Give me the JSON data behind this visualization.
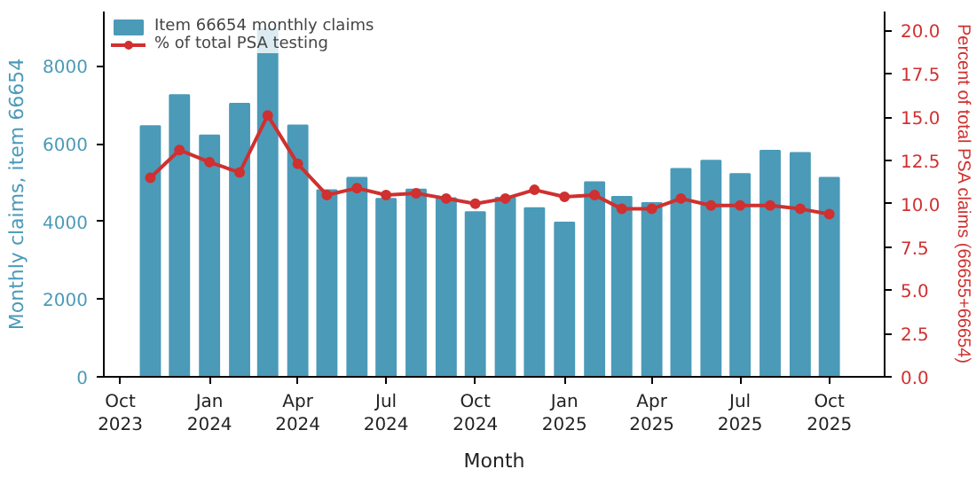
{
  "chart_data": {
    "type": "bar",
    "xlabel": "Month",
    "ylabel": "Monthly claims, item 66654",
    "y2label": "Percent of total PSA claims (66655+66654)",
    "x": [
      "2023-11",
      "2023-12",
      "2024-01",
      "2024-02",
      "2024-03",
      "2024-04",
      "2024-05",
      "2024-06",
      "2024-07",
      "2024-08",
      "2024-09",
      "2024-10",
      "2024-11",
      "2024-12",
      "2025-01",
      "2025-02",
      "2025-03",
      "2025-04",
      "2025-05",
      "2025-06",
      "2025-07",
      "2025-08",
      "2025-09",
      "2025-10"
    ],
    "series": [
      {
        "name": "Item 66654 monthly claims",
        "color": "#4b9ab8",
        "values": [
          6450,
          7250,
          6210,
          7030,
          8950,
          6470,
          4800,
          5120,
          4580,
          4820,
          4600,
          4240,
          4610,
          4340,
          3970,
          5010,
          4630,
          4470,
          5350,
          5560,
          5220,
          5820,
          5760,
          5120
        ]
      },
      {
        "name": "% of total PSA testing",
        "type": "line",
        "axis": "y2",
        "color": "#d03030",
        "marker": "circle",
        "values": [
          11.5,
          13.1,
          12.4,
          11.8,
          15.1,
          12.3,
          10.5,
          10.9,
          10.5,
          10.6,
          10.3,
          10.0,
          10.3,
          10.8,
          10.4,
          10.5,
          9.7,
          9.7,
          10.3,
          9.9,
          9.9,
          9.9,
          9.7,
          9.4
        ]
      }
    ],
    "xlim": [
      "2023-09-14",
      "2025-11-27"
    ],
    "xticks": [
      {
        "value": "2023-10",
        "label": "Oct\n2023"
      },
      {
        "value": "2024-01",
        "label": "Jan\n2024"
      },
      {
        "value": "2024-04",
        "label": "Apr\n2024"
      },
      {
        "value": "2024-07",
        "label": "Jul\n2024"
      },
      {
        "value": "2024-10",
        "label": "Oct\n2024"
      },
      {
        "value": "2025-01",
        "label": "Jan\n2025"
      },
      {
        "value": "2025-04",
        "label": "Apr\n2025"
      },
      {
        "value": "2025-07",
        "label": "Jul\n2025"
      },
      {
        "value": "2025-10",
        "label": "Oct\n2025"
      }
    ],
    "ylim": [
      0,
      9400
    ],
    "yticks": [
      0,
      2000,
      4000,
      6000,
      8000
    ],
    "y2lim": [
      0,
      21.1
    ],
    "y2ticks": [
      {
        "value": 0,
        "label": "0.0"
      },
      {
        "value": 2.5,
        "label": "2.5"
      },
      {
        "value": 5,
        "label": "5.0"
      },
      {
        "value": 7.5,
        "label": "7.5"
      },
      {
        "value": 10,
        "label": "10.0"
      },
      {
        "value": 12.5,
        "label": "12.5"
      },
      {
        "value": 15,
        "label": "15.0"
      },
      {
        "value": 17.5,
        "label": "17.5"
      },
      {
        "value": 20,
        "label": "20.0"
      }
    ],
    "grid": false,
    "legend": "top left"
  }
}
